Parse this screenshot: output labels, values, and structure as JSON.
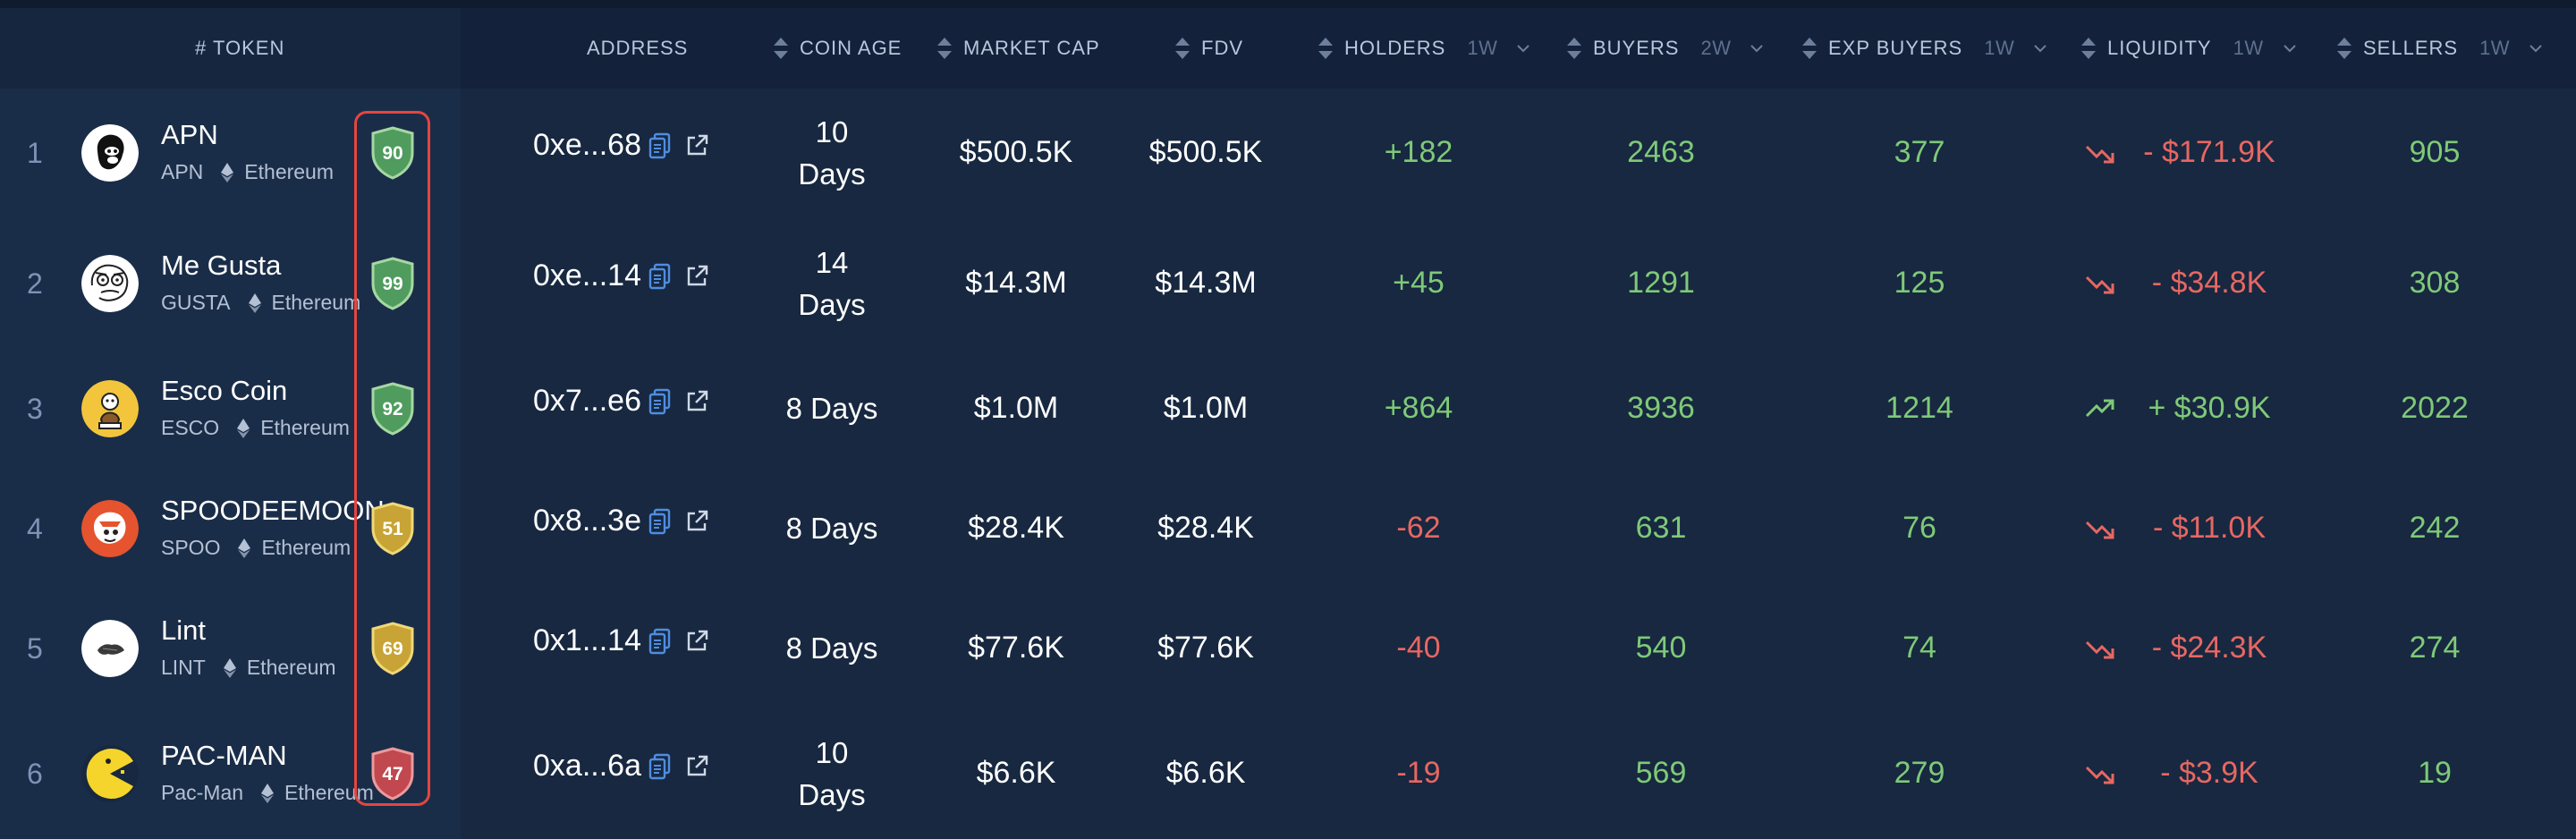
{
  "colors": {
    "background": "#172840",
    "header_bg": "#13223a",
    "positive": "#7fc978",
    "negative": "#e76762",
    "badge_green": "#4f9c5e",
    "badge_yellow": "#c8a436",
    "badge_red": "#c0484e",
    "highlight": "#e5453f"
  },
  "header": {
    "token": "# TOKEN",
    "address": "ADDRESS",
    "coin_age": "COIN AGE",
    "market_cap": "MARKET CAP",
    "fdv": "FDV",
    "holders": "HOLDERS",
    "holders_period": "1W",
    "buyers": "BUYERS",
    "buyers_period": "2W",
    "exp_buyers": "EXP BUYERS",
    "exp_buyers_period": "1W",
    "liquidity": "LIQUIDITY",
    "liquidity_period": "1W",
    "sellers": "SELLERS",
    "sellers_period": "1W"
  },
  "rows": [
    {
      "rank": "1",
      "name": "APN",
      "symbol": "APN",
      "chain": "Ethereum",
      "score": "90",
      "score_color": "green",
      "avatar": "ape-avatar-icon",
      "address": "0xe...68",
      "age_line1": "10",
      "age_line2": "Days",
      "market_cap": "$500.5K",
      "fdv": "$500.5K",
      "holders": "+182",
      "holders_sign": "positive",
      "buyers": "2463",
      "exp_buyers": "377",
      "liquidity": "- $171.9K",
      "liquidity_trend": "down",
      "sellers": "905"
    },
    {
      "rank": "2",
      "name": "Me Gusta",
      "symbol": "GUSTA",
      "chain": "Ethereum",
      "score": "99",
      "score_color": "green",
      "avatar": "me-gusta-avatar-icon",
      "address": "0xe...14",
      "age_line1": "14",
      "age_line2": "Days",
      "market_cap": "$14.3M",
      "fdv": "$14.3M",
      "holders": "+45",
      "holders_sign": "positive",
      "buyers": "1291",
      "exp_buyers": "125",
      "liquidity": "- $34.8K",
      "liquidity_trend": "down",
      "sellers": "308"
    },
    {
      "rank": "3",
      "name": "Esco Coin",
      "symbol": "ESCO",
      "chain": "Ethereum",
      "score": "92",
      "score_color": "green",
      "avatar": "esco-avatar-icon",
      "address": "0x7...e6",
      "age_line1": "8 Days",
      "age_line2": "",
      "market_cap": "$1.0M",
      "fdv": "$1.0M",
      "holders": "+864",
      "holders_sign": "positive",
      "buyers": "3936",
      "exp_buyers": "1214",
      "liquidity": "+ $30.9K",
      "liquidity_trend": "up",
      "sellers": "2022"
    },
    {
      "rank": "4",
      "name": "SPOODEEMOON",
      "symbol": "SPOO",
      "chain": "Ethereum",
      "score": "51",
      "score_color": "yellow",
      "avatar": "spoodeemoon-avatar-icon",
      "address": "0x8...3e",
      "age_line1": "8 Days",
      "age_line2": "",
      "market_cap": "$28.4K",
      "fdv": "$28.4K",
      "holders": "-62",
      "holders_sign": "negative",
      "buyers": "631",
      "exp_buyers": "76",
      "liquidity": "- $11.0K",
      "liquidity_trend": "down",
      "sellers": "242"
    },
    {
      "rank": "5",
      "name": "Lint",
      "symbol": "LINT",
      "chain": "Ethereum",
      "score": "69",
      "score_color": "yellow",
      "avatar": "lint-avatar-icon",
      "address": "0x1...14",
      "age_line1": "8 Days",
      "age_line2": "",
      "market_cap": "$77.6K",
      "fdv": "$77.6K",
      "holders": "-40",
      "holders_sign": "negative",
      "buyers": "540",
      "exp_buyers": "74",
      "liquidity": "- $24.3K",
      "liquidity_trend": "down",
      "sellers": "274"
    },
    {
      "rank": "6",
      "name": "PAC-MAN",
      "symbol": "Pac-Man",
      "chain": "Ethereum",
      "score": "47",
      "score_color": "red",
      "avatar": "pac-man-avatar-icon",
      "address": "0xa...6a",
      "age_line1": "10",
      "age_line2": "Days",
      "market_cap": "$6.6K",
      "fdv": "$6.6K",
      "holders": "-19",
      "holders_sign": "negative",
      "buyers": "569",
      "exp_buyers": "279",
      "liquidity": "- $3.9K",
      "liquidity_trend": "down",
      "sellers": "19"
    }
  ]
}
